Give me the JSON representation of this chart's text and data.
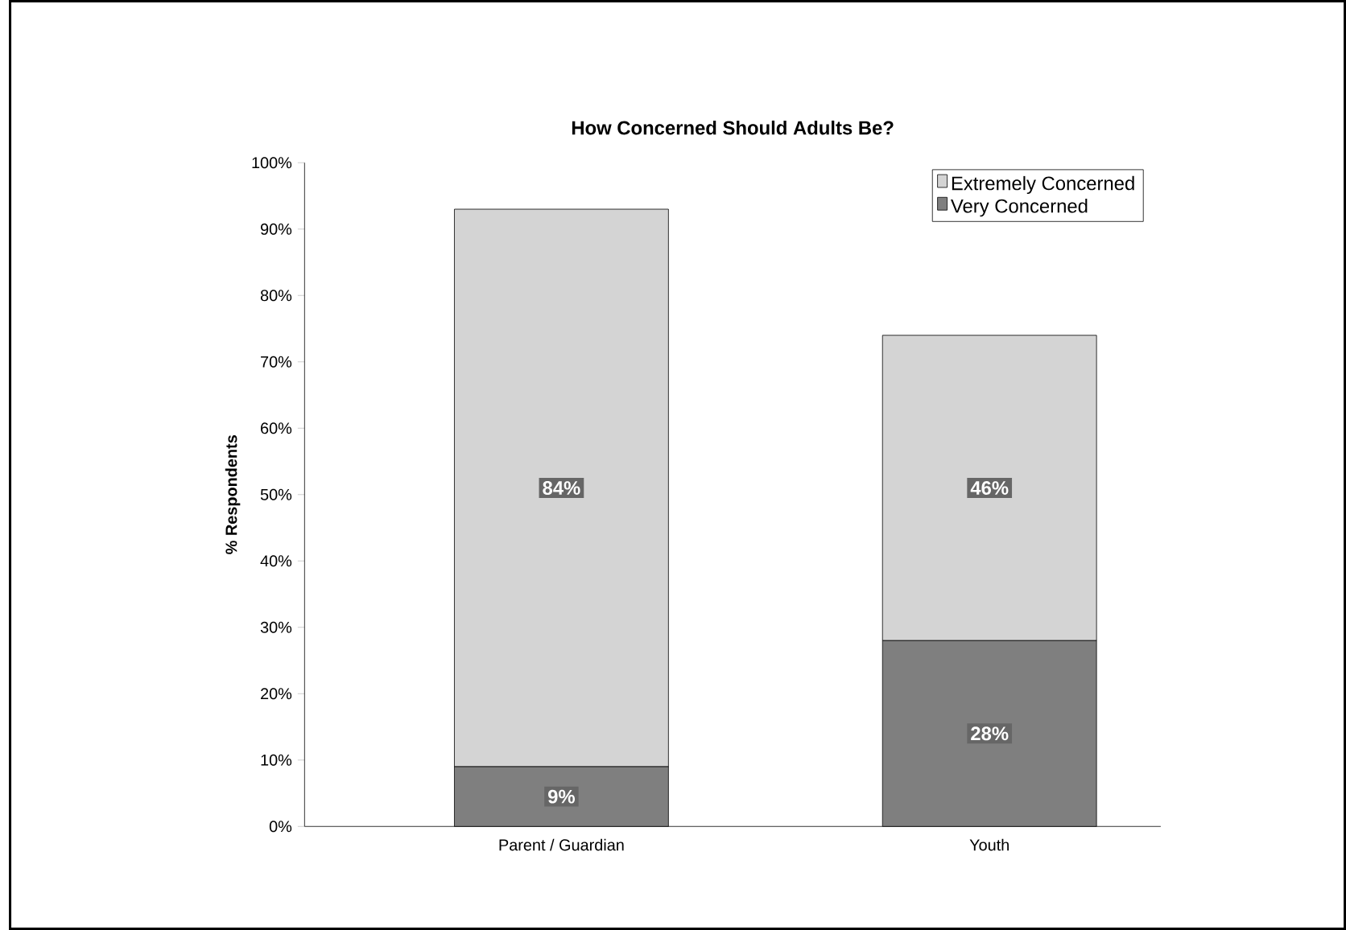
{
  "chart_data": {
    "type": "bar",
    "title": "How Concerned Should Adults Be?",
    "ylabel": "% Respondents",
    "categories": [
      "Parent / Guardian",
      "Youth"
    ],
    "stacked": true,
    "series": [
      {
        "name": "Very Concerned",
        "color": "#7f7f7f",
        "values": [
          9,
          28
        ],
        "value_labels": [
          "9%",
          "28%"
        ]
      },
      {
        "name": "Extremely Concerned",
        "color": "#d4d4d4",
        "values": [
          84,
          46
        ],
        "value_labels": [
          "84%",
          "46%"
        ]
      }
    ],
    "ylim": [
      0,
      100
    ],
    "yticks": [
      {
        "value": 0,
        "label": "0%"
      },
      {
        "value": 10,
        "label": "10%"
      },
      {
        "value": 20,
        "label": "20%"
      },
      {
        "value": 30,
        "label": "30%"
      },
      {
        "value": 40,
        "label": "40%"
      },
      {
        "value": 50,
        "label": "50%"
      },
      {
        "value": 60,
        "label": "60%"
      },
      {
        "value": 70,
        "label": "70%"
      },
      {
        "value": 80,
        "label": "80%"
      },
      {
        "value": 90,
        "label": "90%"
      },
      {
        "value": 100,
        "label": "100%"
      }
    ],
    "legend": "top right",
    "grid": false
  }
}
